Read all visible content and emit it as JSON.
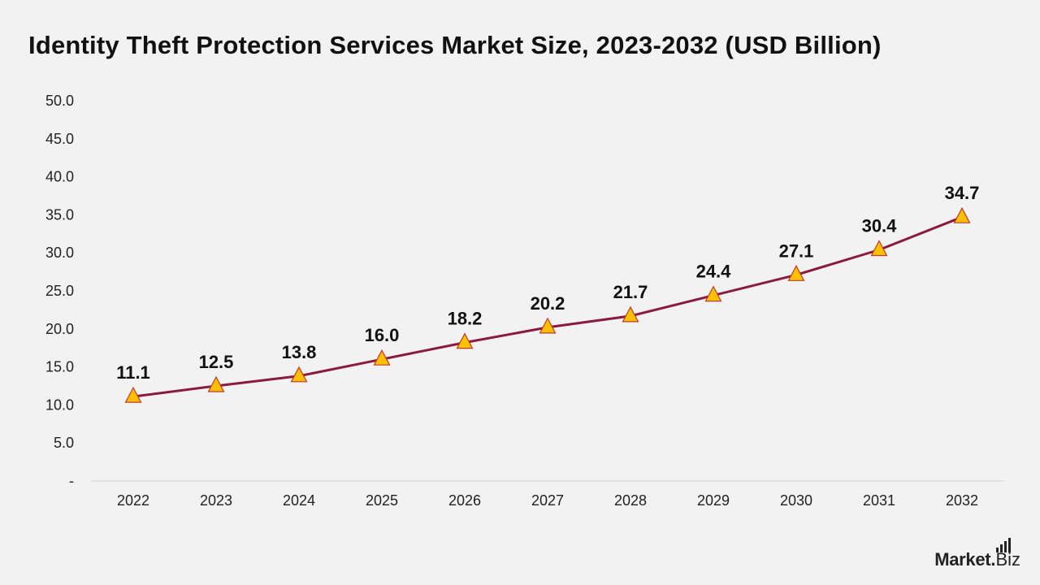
{
  "title": "Identity Theft Protection Services Market Size, 2023-2032 (USD Billion)",
  "brand": {
    "name": "Market",
    "dot": ".",
    "suffix": "Biz"
  },
  "colors": {
    "background": "#f2f2f2",
    "line": "#8b1a3f",
    "marker_fill": "#ffc000",
    "marker_stroke": "#c0392b",
    "axis": "#d0d0d0"
  },
  "chart_data": {
    "type": "line",
    "title": "Identity Theft Protection Services Market Size, 2023-2032 (USD Billion)",
    "categories": [
      "2022",
      "2023",
      "2024",
      "2025",
      "2026",
      "2027",
      "2028",
      "2029",
      "2030",
      "2031",
      "2032"
    ],
    "series": [
      {
        "values": [
          11.1,
          12.5,
          13.8,
          16.0,
          18.2,
          20.2,
          21.7,
          24.4,
          27.1,
          30.4,
          34.7
        ]
      }
    ],
    "data_labels": [
      "11.1",
      "12.5",
      "13.8",
      "16.0",
      "18.2",
      "20.2",
      "21.7",
      "24.4",
      "27.1",
      "30.4",
      "34.7"
    ],
    "yticks": [
      "-",
      "5.0",
      "10.0",
      "15.0",
      "20.0",
      "25.0",
      "30.0",
      "35.0",
      "40.0",
      "45.0",
      "50.0"
    ],
    "ylim": [
      0,
      50
    ],
    "marker": "triangle",
    "grid": false,
    "legend": "none"
  }
}
